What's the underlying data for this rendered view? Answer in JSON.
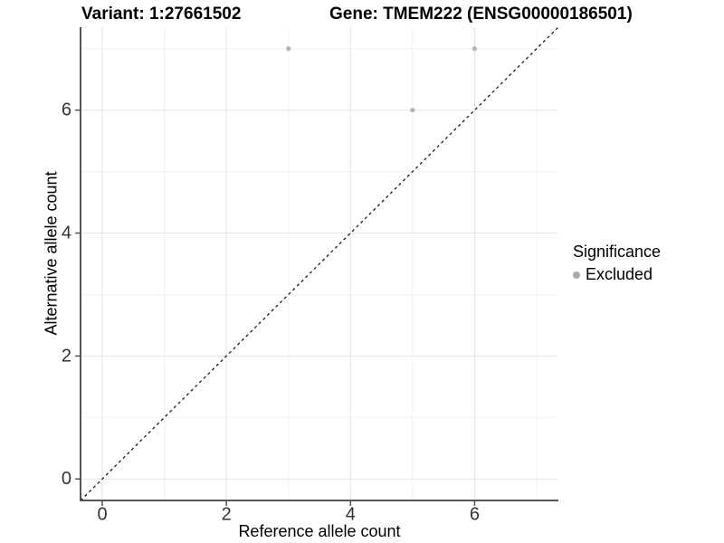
{
  "figure": {
    "title_left": "Variant: 1:27661502",
    "title_right": "Gene: TMEM222 (ENSG00000186501)"
  },
  "chart_data": {
    "type": "scatter",
    "title": "Variant: 1:27661502   Gene: TMEM222 (ENSG00000186501)",
    "xlabel": "Reference allele count",
    "ylabel": "Alternative allele count",
    "xlim": [
      -0.35,
      7.35
    ],
    "ylim": [
      -0.35,
      7.35
    ],
    "x_ticks": [
      0,
      2,
      4,
      6
    ],
    "y_ticks": [
      0,
      2,
      4,
      6
    ],
    "x_minor": [
      1,
      3,
      5,
      7
    ],
    "y_minor": [
      1,
      3,
      5,
      7
    ],
    "grid": true,
    "series": [
      {
        "name": "Excluded",
        "color": "#b3b3b3",
        "point_radius": 2.6,
        "points": [
          [
            3,
            7
          ],
          [
            6,
            7
          ],
          [
            5,
            6
          ]
        ]
      }
    ],
    "identity_line": {
      "style": "dashed",
      "color": "#1a1a1a",
      "from": [
        -0.35,
        -0.35
      ],
      "to": [
        7.35,
        7.35
      ]
    },
    "legend": {
      "title": "Significance",
      "position": "right",
      "items": [
        {
          "label": "Excluded",
          "color": "#aaaaaa"
        }
      ]
    },
    "colors": {
      "grid_major": "#e4e4e4",
      "grid_minor": "#f2f2f2",
      "axis": "#555555",
      "tick_label": "#333333"
    }
  }
}
